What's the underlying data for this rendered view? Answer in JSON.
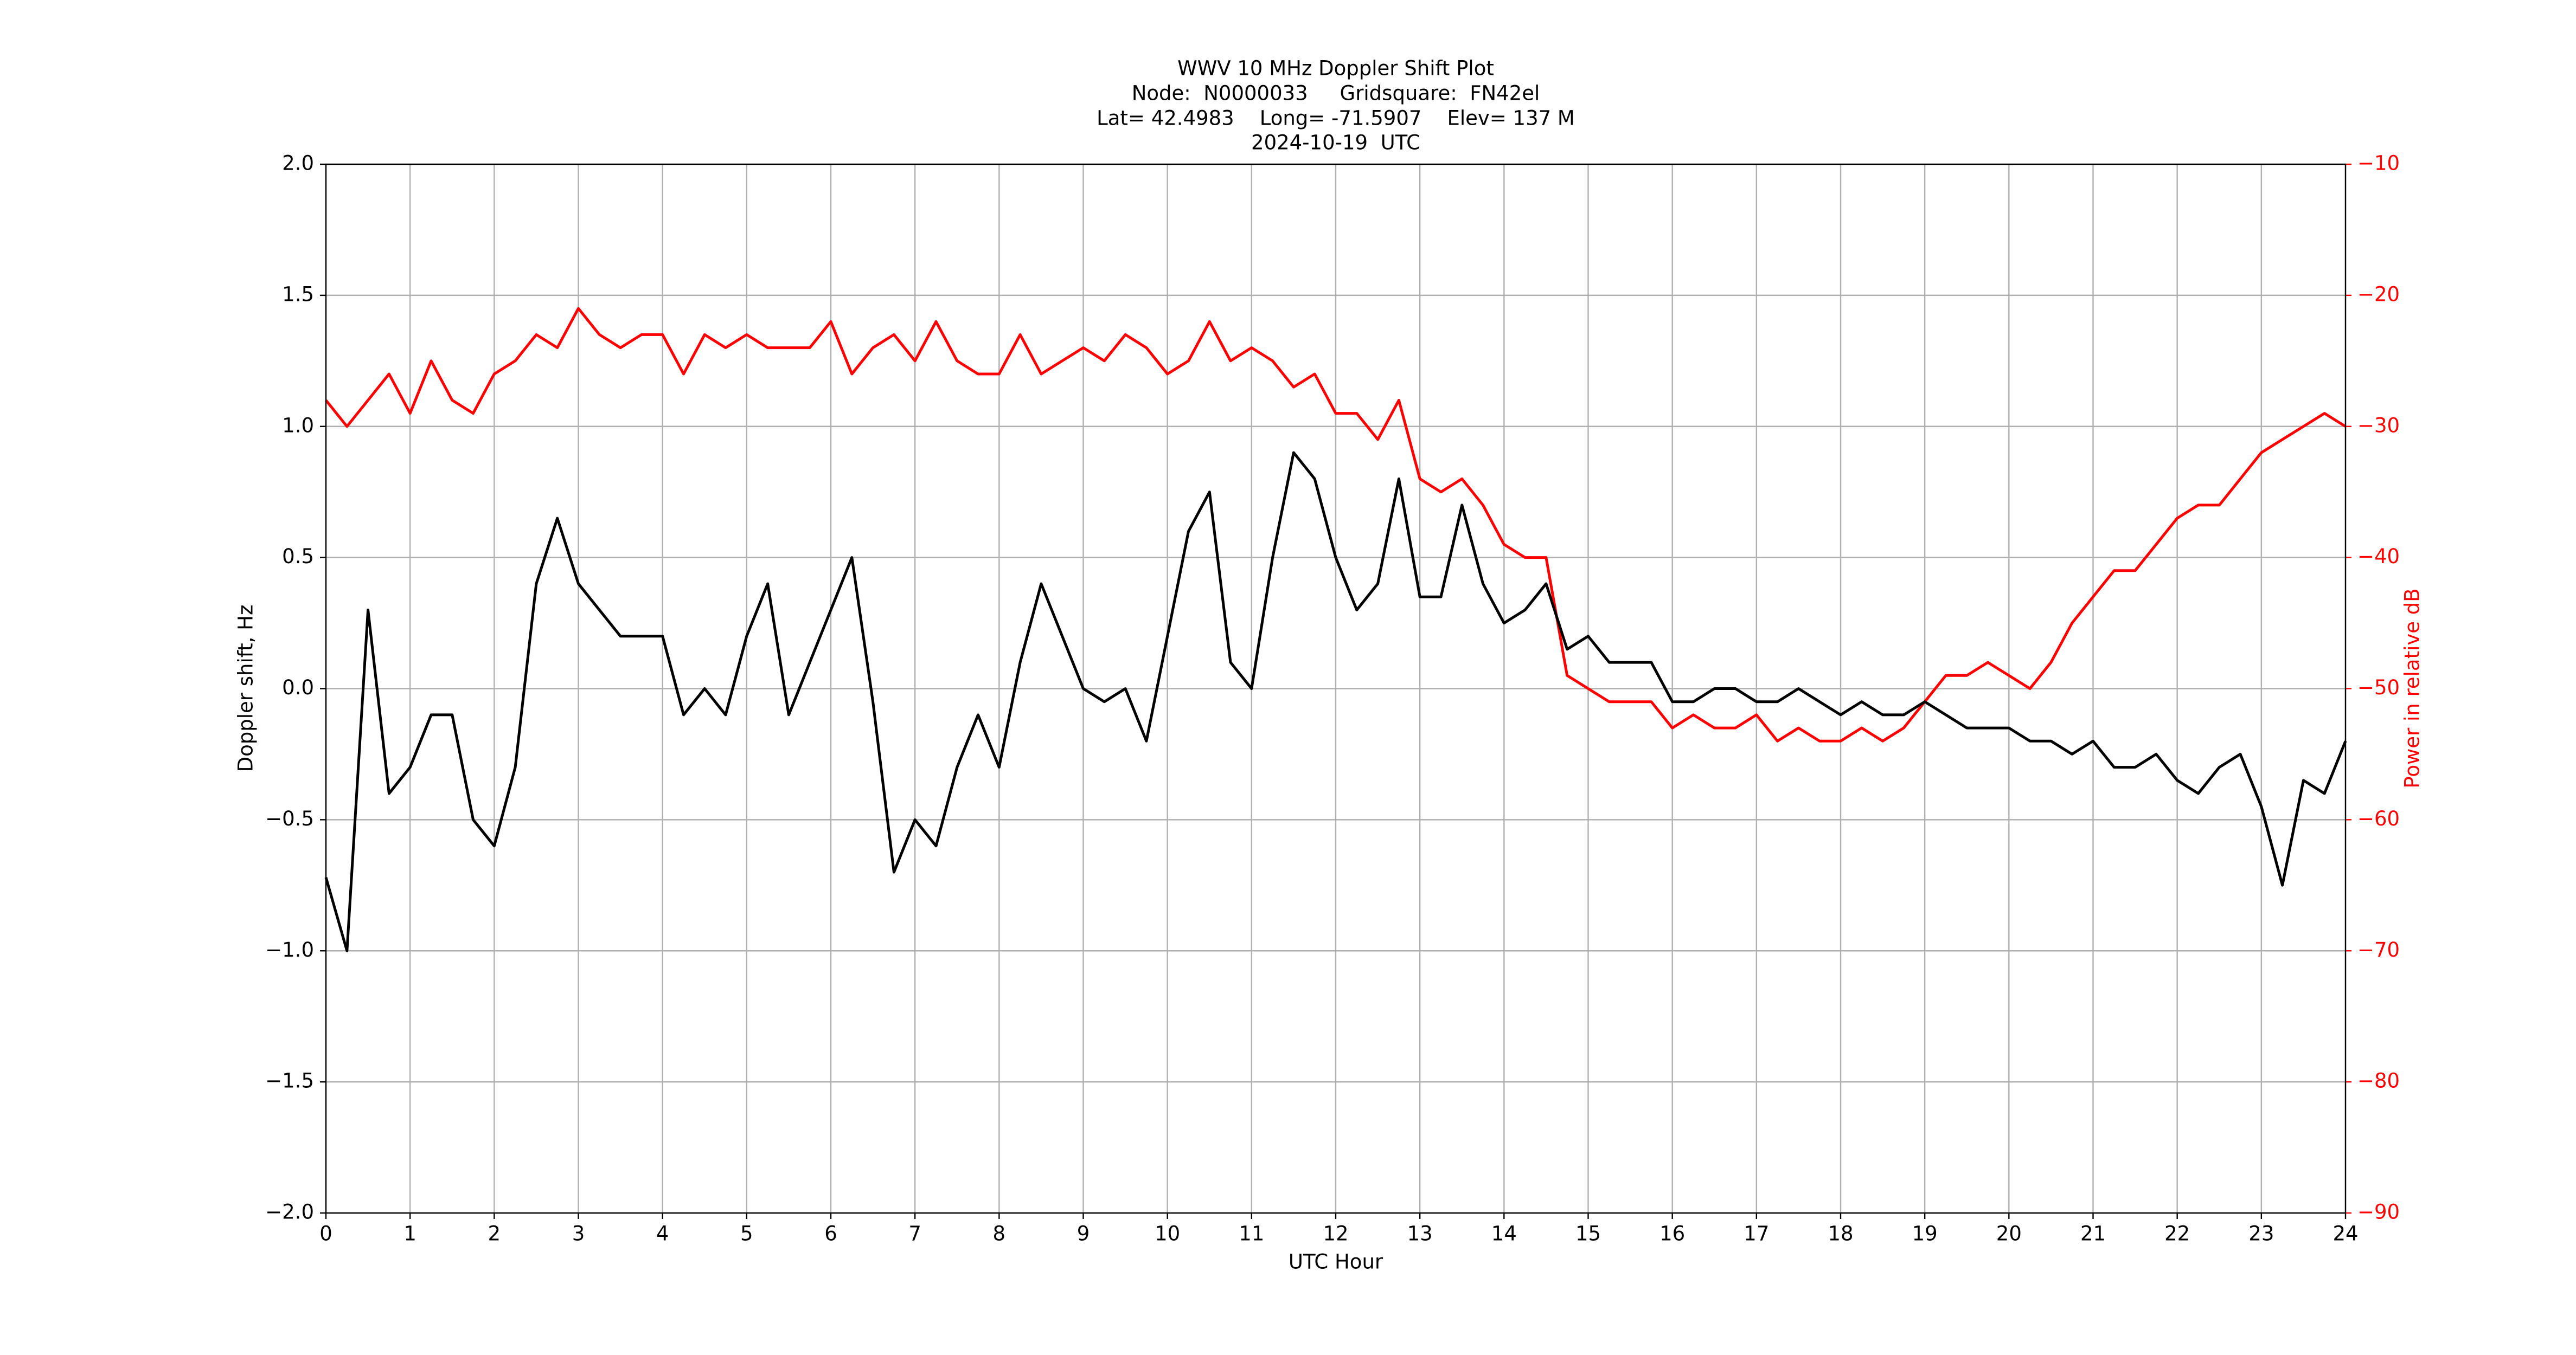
{
  "chart_data": {
    "type": "line",
    "title": [
      "WWV 10 MHz Doppler Shift Plot",
      "Node:  N0000033     Gridsquare:  FN42el",
      "Lat= 42.4983    Long= -71.5907    Elev= 137 M",
      "2024-10-19  UTC"
    ],
    "xlabel": "UTC Hour",
    "ylabel": "Doppler shift, Hz",
    "y2label": "Power in relative dB",
    "x": [
      0,
      0.25,
      0.5,
      0.75,
      1,
      1.25,
      1.5,
      1.75,
      2,
      2.25,
      2.5,
      2.75,
      3,
      3.25,
      3.5,
      3.75,
      4,
      4.25,
      4.5,
      4.75,
      5,
      5.25,
      5.5,
      5.75,
      6,
      6.25,
      6.5,
      6.75,
      7,
      7.25,
      7.5,
      7.75,
      8,
      8.25,
      8.5,
      8.75,
      9,
      9.25,
      9.5,
      9.75,
      10,
      10.25,
      10.5,
      10.75,
      11,
      11.25,
      11.5,
      11.75,
      12,
      12.25,
      12.5,
      12.75,
      13,
      13.25,
      13.5,
      13.75,
      14,
      14.25,
      14.5,
      14.75,
      15,
      15.25,
      15.5,
      15.75,
      16,
      16.25,
      16.5,
      16.75,
      17,
      17.25,
      17.5,
      17.75,
      18,
      18.25,
      18.5,
      18.75,
      19,
      19.25,
      19.5,
      19.75,
      20,
      20.25,
      20.5,
      20.75,
      21,
      21.25,
      21.5,
      21.75,
      22,
      22.25,
      22.5,
      22.75,
      23,
      23.25,
      23.5,
      23.75,
      24
    ],
    "series": [
      {
        "name": "Doppler shift",
        "color": "#000000",
        "values": [
          -0.72,
          -1.0,
          0.3,
          -0.4,
          -0.3,
          -0.1,
          -0.1,
          -0.5,
          -0.6,
          -0.3,
          0.4,
          0.65,
          0.4,
          0.3,
          0.2,
          0.2,
          0.2,
          -0.1,
          0.0,
          -0.1,
          0.2,
          0.4,
          -0.1,
          0.1,
          0.3,
          0.5,
          -0.05,
          -0.7,
          -0.5,
          -0.6,
          -0.3,
          -0.1,
          -0.3,
          0.1,
          0.4,
          0.2,
          0.0,
          -0.05,
          0.0,
          -0.2,
          0.2,
          0.6,
          0.75,
          0.1,
          0.0,
          0.5,
          0.9,
          0.8,
          0.5,
          0.3,
          0.4,
          0.8,
          0.35,
          0.35,
          0.7,
          0.4,
          0.25,
          0.3,
          0.4,
          0.15,
          0.2,
          0.1,
          0.1,
          0.1,
          -0.05,
          -0.05,
          0.0,
          0.0,
          -0.05,
          -0.05,
          0.0,
          -0.05,
          -0.1,
          -0.05,
          -0.1,
          -0.1,
          -0.05,
          -0.1,
          -0.15,
          -0.15,
          -0.15,
          -0.2,
          -0.2,
          -0.25,
          -0.2,
          -0.3,
          -0.3,
          -0.25,
          -0.35,
          -0.4,
          -0.3,
          -0.25,
          -0.45,
          -0.75,
          -0.35,
          -0.4,
          -0.2
        ]
      },
      {
        "name": "Power",
        "color": "#ff0000",
        "axis": "y2",
        "values": [
          -28,
          -30,
          -28,
          -26,
          -29,
          -25,
          -28,
          -29,
          -26,
          -25,
          -23,
          -24,
          -21,
          -23,
          -24,
          -23,
          -23,
          -26,
          -23,
          -24,
          -23,
          -24,
          -24,
          -24,
          -22,
          -26,
          -24,
          -23,
          -25,
          -22,
          -25,
          -26,
          -26,
          -23,
          -26,
          -25,
          -24,
          -25,
          -23,
          -24,
          -26,
          -25,
          -22,
          -25,
          -24,
          -25,
          -27,
          -26,
          -29,
          -29,
          -31,
          -28,
          -34,
          -35,
          -34,
          -36,
          -39,
          -40,
          -40,
          -49,
          -50,
          -51,
          -51,
          -51,
          -53,
          -52,
          -53,
          -53,
          -52,
          -54,
          -53,
          -54,
          -54,
          -53,
          -54,
          -53,
          -51,
          -49,
          -49,
          -48,
          -49,
          -50,
          -48,
          -45,
          -43,
          -41,
          -41,
          -39,
          -37,
          -36,
          -36,
          -34,
          -32,
          -31,
          -30,
          -29,
          -30
        ]
      }
    ],
    "xlim": [
      0,
      24
    ],
    "xticks": [
      0,
      1,
      2,
      3,
      4,
      5,
      6,
      7,
      8,
      9,
      10,
      11,
      12,
      13,
      14,
      15,
      16,
      17,
      18,
      19,
      20,
      21,
      22,
      23,
      24
    ],
    "ylim": [
      -2.0,
      2.0
    ],
    "yticks": [
      {
        "value": -2.0,
        "label": "−2.0"
      },
      {
        "value": -1.5,
        "label": "−1.5"
      },
      {
        "value": -1.0,
        "label": "−1.0"
      },
      {
        "value": -0.5,
        "label": "−0.5"
      },
      {
        "value": 0.0,
        "label": "0.0"
      },
      {
        "value": 0.5,
        "label": "0.5"
      },
      {
        "value": 1.0,
        "label": "1.0"
      },
      {
        "value": 1.5,
        "label": "1.5"
      },
      {
        "value": 2.0,
        "label": "2.0"
      }
    ],
    "y2lim": [
      -90,
      -10
    ],
    "y2ticks": [
      {
        "value": -90,
        "label": "−90"
      },
      {
        "value": -80,
        "label": "−80"
      },
      {
        "value": -70,
        "label": "−70"
      },
      {
        "value": -60,
        "label": "−60"
      },
      {
        "value": -50,
        "label": "−50"
      },
      {
        "value": -40,
        "label": "−40"
      },
      {
        "value": -30,
        "label": "−30"
      },
      {
        "value": -20,
        "label": "−20"
      },
      {
        "value": -10,
        "label": "−10"
      }
    ],
    "y2color": "#ff0000",
    "grid": true
  }
}
